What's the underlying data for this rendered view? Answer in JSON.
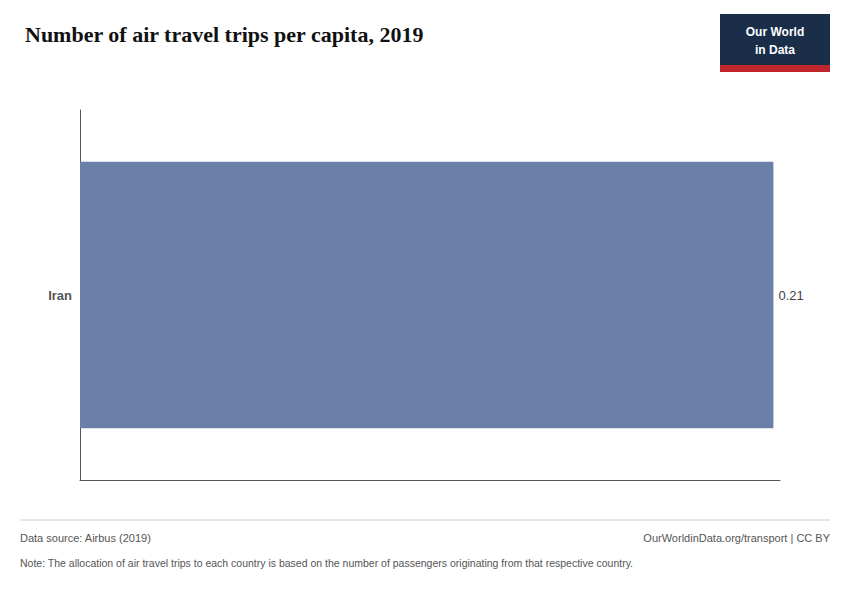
{
  "chart_data": {
    "type": "bar",
    "orientation": "horizontal",
    "title": "Number of air travel trips per capita, 2019",
    "categories": [
      "Iran"
    ],
    "values": [
      0.21
    ],
    "color": "#6b80a8",
    "xlim": [
      0,
      0.212
    ],
    "xticks": [],
    "tick_labels": "y",
    "grid": false,
    "data_labels": true,
    "annotations": [
      "Data source: Airbus (2019)",
      "Note: The allocation of air travel trips to each country is based on the number of passengers originating from that respective country.",
      "OurWorldinData.org/transport | CC BY",
      "Our World",
      "in Data"
    ]
  }
}
